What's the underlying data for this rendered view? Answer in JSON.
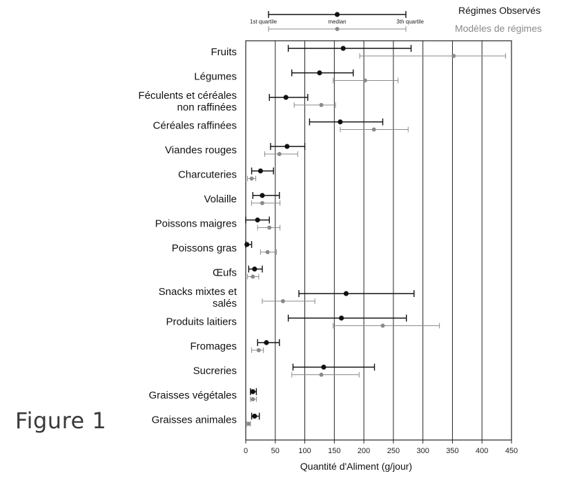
{
  "figure_label": "Figure 1",
  "colors": {
    "observed": "#111111",
    "model": "#8a8a8a",
    "grid": "#222222"
  },
  "chart_data": {
    "type": "scatter",
    "xlabel": "Quantité d'Aliment (g/jour)",
    "xlim": [
      0,
      450
    ],
    "xticks": [
      0,
      50,
      100,
      150,
      200,
      250,
      300,
      350,
      400,
      450
    ],
    "grid": true,
    "legend_position": "top-right",
    "legend": {
      "observed_label": "Régimes Observés",
      "model_label": "Modèles de régimes",
      "key_labels": [
        "1st quartile",
        "median",
        "3th quartile"
      ]
    },
    "categories": [
      [
        "Fruits"
      ],
      [
        "Légumes"
      ],
      [
        "Féculents et céréales",
        "non raffinées"
      ],
      [
        "Céréales raffinées"
      ],
      [
        "Viandes rouges"
      ],
      [
        "Charcuteries"
      ],
      [
        "Volaille"
      ],
      [
        "Poissons maigres"
      ],
      [
        "Poissons gras"
      ],
      [
        "Œufs"
      ],
      [
        "Snacks mixtes et",
        "salés"
      ],
      [
        "Produits laitiers"
      ],
      [
        "Fromages"
      ],
      [
        "Sucreries"
      ],
      [
        "Graisses végétales"
      ],
      [
        "Graisses animales"
      ]
    ],
    "series": [
      {
        "name": "Régimes Observés",
        "q1": [
          72,
          78,
          40,
          108,
          42,
          10,
          12,
          0,
          0,
          5,
          90,
          72,
          20,
          80,
          8,
          10
        ],
        "median": [
          165,
          125,
          68,
          160,
          70,
          25,
          28,
          20,
          2,
          15,
          170,
          162,
          35,
          132,
          12,
          15
        ],
        "q3": [
          280,
          182,
          105,
          232,
          100,
          47,
          57,
          40,
          10,
          28,
          285,
          272,
          57,
          218,
          18,
          23
        ]
      },
      {
        "name": "Modèles de régimes",
        "q1": [
          193,
          148,
          82,
          160,
          32,
          3,
          10,
          20,
          25,
          3,
          28,
          148,
          10,
          78,
          8,
          2
        ],
        "median": [
          352,
          202,
          128,
          217,
          57,
          10,
          28,
          40,
          37,
          12,
          63,
          232,
          22,
          128,
          12,
          5
        ],
        "q3": [
          440,
          258,
          152,
          275,
          88,
          17,
          58,
          58,
          52,
          22,
          117,
          328,
          30,
          192,
          18,
          8
        ]
      }
    ]
  }
}
